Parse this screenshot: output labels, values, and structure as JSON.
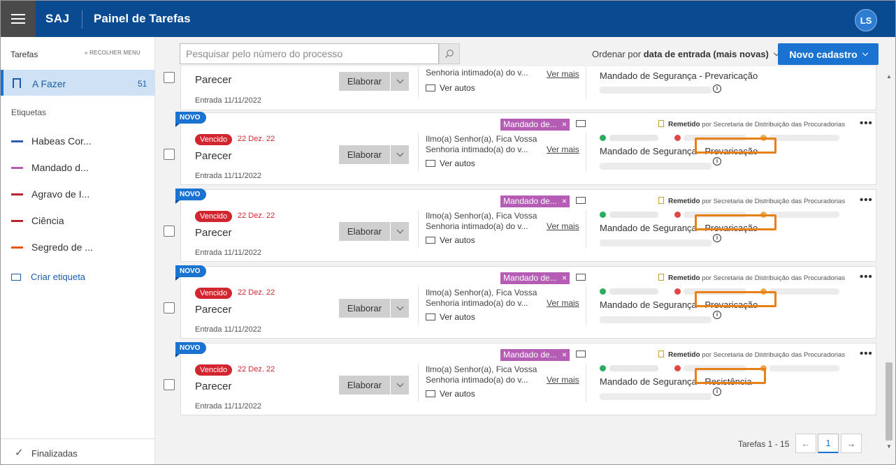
{
  "header": {
    "brand": "SAJ",
    "title": "Painel de Tarefas",
    "avatar_initials": "LS",
    "accent": "#0a4a91"
  },
  "sidebar": {
    "section_title": "Tarefas",
    "collapse_label": "« RECOLHER MENU",
    "current": {
      "label": "A Fazer",
      "count": "51"
    },
    "tags_title": "Etiquetas",
    "tags": [
      {
        "label": "Habeas Cor...",
        "color": "#2b5fb3"
      },
      {
        "label": "Mandado d...",
        "color": "#b55db5"
      },
      {
        "label": "Agravo de I...",
        "color": "#b3262d"
      },
      {
        "label": "Ciência",
        "color": "#b3262d"
      },
      {
        "label": "Segredo de ...",
        "color": "#e8580c"
      }
    ],
    "create_tag": "Criar etiqueta",
    "finished": "Finalizadas"
  },
  "toolbar": {
    "search_placeholder": "Pesquisar pelo número do processo",
    "sort_prefix": "Ordenar por",
    "sort_value": "data de entrada (mais novas)",
    "new_button": "Novo cadastro"
  },
  "common": {
    "novo": "NOVO",
    "status": "Vencido",
    "due": "22 Dez. 22",
    "task_title": "Parecer",
    "entry": "Entrada 11/11/2022",
    "action": "Elaborar",
    "msg1": "Ilmo(a) Senhor(a), Fica Vossa",
    "msg2": "Senhoria intimado(a) do v...",
    "ver_mais": "Ver mais",
    "ver_autos": "Ver autos",
    "tag_chip": "Mandado de...",
    "tag_chip_close": "×",
    "remetido_label": "Remetido",
    "remetido_by": "por Secretaria de Distribuição das Procuradorias",
    "more": "•••",
    "mandado_prefix": "Mandado de Segurança",
    "dash": "-",
    "info": "i"
  },
  "first_card": {
    "task_title": "Parecer",
    "entry": "Entrada 11/11/2022",
    "action": "Elaborar",
    "msg2": "Senhoria intimado(a) do v...",
    "ver_mais": "Ver mais",
    "ver_autos": "Ver autos",
    "subject": "Mandado de Segurança - Prevaricação"
  },
  "cards": [
    {
      "subject": "Prevaricação"
    },
    {
      "subject": "Prevaricação"
    },
    {
      "subject": "Prevaricação"
    },
    {
      "subject": "Resistência"
    }
  ],
  "pagination": {
    "label": "Tarefas 1 - 15",
    "prev": "←",
    "page": "1",
    "next": "→"
  },
  "colors": {
    "novo": "#1a73d1",
    "status": "#d3252f",
    "highlight": "#e8801a",
    "tag_chip": "#b55db5"
  }
}
